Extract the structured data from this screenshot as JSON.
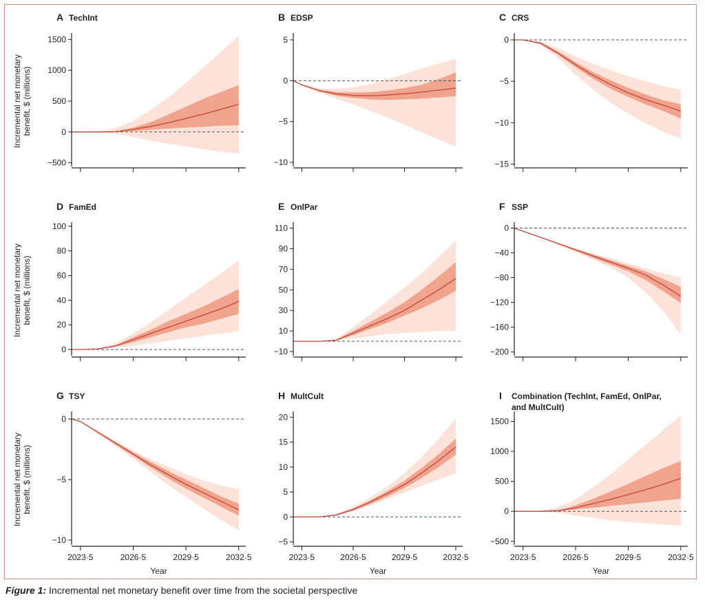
{
  "figure": {
    "caption_label": "Figure 1:",
    "caption_text": " Incremental net monetary benefit over time from the societal perspective"
  },
  "shared": {
    "xlabel": "Year",
    "ylabel": [
      "Incremental net monetary",
      "benefit, $ (millions)"
    ],
    "x_tick_labels": [
      "2023·5",
      "2026·5",
      "2029·5",
      "2032·5"
    ],
    "colors": {
      "line": "#c4453c",
      "inner_band": "#f0a48e",
      "outer_band": "#fce2d8",
      "zero_line": "#3c5a6a",
      "axis": "#231f20"
    }
  },
  "chart_data": [
    {
      "panel": "A",
      "title": "TechInt",
      "type": "line",
      "x": [
        2023.0,
        2023.5,
        2024.5,
        2025.5,
        2026.5,
        2027.5,
        2028.5,
        2029.5,
        2030.5,
        2031.5,
        2032.5
      ],
      "xlim": [
        2023.0,
        2032.9
      ],
      "ylim": [
        -560,
        1560
      ],
      "yticks": [
        -500,
        0,
        500,
        1000,
        1500
      ],
      "y_tick_labels": [
        "−500",
        "0",
        "500",
        "1000",
        "1500"
      ],
      "series": [
        {
          "role": "central",
          "values": [
            0,
            0,
            0,
            5,
            40,
            90,
            150,
            220,
            290,
            370,
            450
          ]
        },
        {
          "role": "inner_low",
          "values": [
            0,
            0,
            0,
            3,
            15,
            35,
            55,
            70,
            85,
            100,
            110
          ]
        },
        {
          "role": "inner_high",
          "values": [
            0,
            0,
            0,
            10,
            70,
            160,
            280,
            410,
            540,
            650,
            760
          ]
        },
        {
          "role": "outer_low",
          "values": [
            0,
            0,
            -5,
            -30,
            -80,
            -140,
            -190,
            -240,
            -280,
            -320,
            -350
          ]
        },
        {
          "role": "outer_high",
          "values": [
            0,
            0,
            10,
            60,
            180,
            360,
            560,
            800,
            1050,
            1300,
            1560
          ]
        }
      ]
    },
    {
      "panel": "B",
      "title": "EDSP",
      "type": "line",
      "x": [
        2023.0,
        2023.5,
        2024.5,
        2025.5,
        2026.5,
        2027.5,
        2028.5,
        2029.5,
        2030.5,
        2031.5,
        2032.5
      ],
      "xlim": [
        2023.0,
        2032.9
      ],
      "ylim": [
        -10.5,
        5.5
      ],
      "yticks": [
        -10,
        -5,
        0,
        5
      ],
      "y_tick_labels": [
        "−10",
        "−5",
        "0",
        "5"
      ],
      "series": [
        {
          "role": "central",
          "values": [
            0,
            -0.5,
            -1.2,
            -1.6,
            -1.8,
            -1.85,
            -1.75,
            -1.6,
            -1.4,
            -1.15,
            -0.9
          ]
        },
        {
          "role": "inner_low",
          "values": [
            0,
            -0.55,
            -1.3,
            -1.85,
            -2.1,
            -2.3,
            -2.35,
            -2.3,
            -2.2,
            -2.05,
            -1.9
          ]
        },
        {
          "role": "inner_high",
          "values": [
            0,
            -0.45,
            -1.1,
            -1.4,
            -1.45,
            -1.4,
            -1.2,
            -0.9,
            -0.5,
            0.2,
            1.0
          ]
        },
        {
          "role": "outer_low",
          "values": [
            0,
            -0.6,
            -1.45,
            -2.2,
            -2.9,
            -3.7,
            -4.5,
            -5.4,
            -6.3,
            -7.2,
            -8.1
          ]
        },
        {
          "role": "outer_high",
          "values": [
            0,
            -0.4,
            -0.95,
            -1.0,
            -0.8,
            -0.4,
            0.2,
            0.8,
            1.5,
            2.1,
            2.7
          ]
        }
      ]
    },
    {
      "panel": "C",
      "title": "CRS",
      "type": "line",
      "x": [
        2023.0,
        2023.5,
        2024.5,
        2025.5,
        2026.5,
        2027.5,
        2028.5,
        2029.5,
        2030.5,
        2031.5,
        2032.5
      ],
      "xlim": [
        2023.0,
        2032.9
      ],
      "ylim": [
        -15.3,
        0.5
      ],
      "yticks": [
        -15,
        -10,
        -5,
        0
      ],
      "y_tick_labels": [
        "−15",
        "−10",
        "−5",
        "0"
      ],
      "series": [
        {
          "role": "central",
          "values": [
            0,
            0,
            -0.4,
            -1.6,
            -3.0,
            -4.3,
            -5.4,
            -6.4,
            -7.2,
            -7.9,
            -8.6
          ]
        },
        {
          "role": "inner_low",
          "values": [
            0,
            0,
            -0.5,
            -1.8,
            -3.3,
            -4.7,
            -5.9,
            -6.9,
            -7.8,
            -8.6,
            -9.5
          ]
        },
        {
          "role": "inner_high",
          "values": [
            0,
            0,
            -0.3,
            -1.4,
            -2.7,
            -3.9,
            -4.9,
            -5.8,
            -6.6,
            -7.3,
            -7.8
          ]
        },
        {
          "role": "outer_low",
          "values": [
            0,
            0,
            -0.6,
            -2.2,
            -4.2,
            -6.0,
            -7.6,
            -8.9,
            -10.1,
            -11.1,
            -11.9
          ]
        },
        {
          "role": "outer_high",
          "values": [
            0,
            0,
            -0.2,
            -1.0,
            -2.0,
            -2.9,
            -3.7,
            -4.4,
            -5.0,
            -5.6,
            -6.0
          ]
        }
      ]
    },
    {
      "panel": "D",
      "title": "FamEd",
      "type": "line",
      "x": [
        2023.0,
        2023.5,
        2024.5,
        2025.5,
        2026.5,
        2027.5,
        2028.5,
        2029.5,
        2030.5,
        2031.5,
        2032.5
      ],
      "xlim": [
        2023.0,
        2032.9
      ],
      "ylim": [
        -5,
        101
      ],
      "yticks": [
        0,
        20,
        40,
        60,
        80,
        100
      ],
      "y_tick_labels": [
        "0",
        "20",
        "40",
        "60",
        "80",
        "100"
      ],
      "series": [
        {
          "role": "central",
          "values": [
            0,
            0,
            0.5,
            3,
            8,
            13,
            18,
            23,
            28,
            33,
            39
          ]
        },
        {
          "role": "inner_low",
          "values": [
            0,
            0,
            0.4,
            2.5,
            6,
            10,
            14,
            18,
            21,
            25,
            29
          ]
        },
        {
          "role": "inner_high",
          "values": [
            0,
            0,
            0.6,
            3.5,
            10,
            16,
            23,
            29,
            35,
            42,
            49
          ]
        },
        {
          "role": "outer_low",
          "values": [
            0,
            0,
            0.2,
            1.5,
            3,
            5,
            7,
            9,
            11,
            13,
            15
          ]
        },
        {
          "role": "outer_high",
          "values": [
            0,
            0,
            1,
            5,
            13,
            22,
            32,
            42,
            52,
            62,
            72
          ]
        }
      ]
    },
    {
      "panel": "E",
      "title": "OnlPar",
      "type": "line",
      "x": [
        2023.0,
        2023.5,
        2024.5,
        2025.5,
        2026.5,
        2027.5,
        2028.5,
        2029.5,
        2030.5,
        2031.5,
        2032.5
      ],
      "xlim": [
        2023.0,
        2032.9
      ],
      "ylim": [
        -14,
        113
      ],
      "yticks": [
        -10,
        10,
        30,
        50,
        70,
        90,
        110
      ],
      "y_tick_labels": [
        "−10",
        "10",
        "30",
        "50",
        "70",
        "90",
        "110"
      ],
      "series": [
        {
          "role": "central",
          "values": [
            0,
            0,
            0,
            1,
            8,
            15,
            22,
            30,
            40,
            50,
            61
          ]
        },
        {
          "role": "inner_low",
          "values": [
            0,
            0,
            0,
            0.8,
            6,
            12,
            18,
            25,
            32,
            40,
            49
          ]
        },
        {
          "role": "inner_high",
          "values": [
            0,
            0,
            0,
            1.5,
            10,
            19,
            28,
            38,
            50,
            63,
            77
          ]
        },
        {
          "role": "outer_low",
          "values": [
            0,
            0,
            0,
            0.5,
            3,
            5,
            7,
            8,
            9,
            10,
            10
          ]
        },
        {
          "role": "outer_high",
          "values": [
            0,
            0,
            0,
            2,
            14,
            26,
            39,
            52,
            66,
            82,
            98
          ]
        }
      ]
    },
    {
      "panel": "F",
      "title": "SSP",
      "type": "line",
      "x": [
        2023.0,
        2023.5,
        2024.5,
        2025.5,
        2026.5,
        2027.5,
        2028.5,
        2029.5,
        2030.5,
        2031.5,
        2032.5
      ],
      "xlim": [
        2023.0,
        2032.9
      ],
      "ylim": [
        -206,
        5
      ],
      "yticks": [
        -200,
        -160,
        -120,
        -80,
        -40,
        0
      ],
      "y_tick_labels": [
        "−200",
        "−160",
        "−120",
        "−80",
        "−40",
        "0"
      ],
      "series": [
        {
          "role": "central",
          "values": [
            0,
            -5,
            -15,
            -25,
            -35,
            -45,
            -55,
            -65,
            -76,
            -92,
            -110
          ]
        },
        {
          "role": "inner_low",
          "values": [
            0,
            -5,
            -15,
            -26,
            -37,
            -48,
            -59,
            -70,
            -84,
            -102,
            -121
          ]
        },
        {
          "role": "inner_high",
          "values": [
            0,
            -5,
            -15,
            -25,
            -34,
            -43,
            -52,
            -61,
            -70,
            -82,
            -95
          ]
        },
        {
          "role": "outer_low",
          "values": [
            0,
            -5,
            -16,
            -27,
            -39,
            -51,
            -64,
            -80,
            -104,
            -134,
            -172
          ]
        },
        {
          "role": "outer_high",
          "values": [
            0,
            -5,
            -14,
            -24,
            -33,
            -41,
            -49,
            -57,
            -65,
            -73,
            -80
          ]
        }
      ]
    },
    {
      "panel": "G",
      "title": "TSY",
      "type": "line",
      "x": [
        2023.0,
        2023.5,
        2024.5,
        2025.5,
        2026.5,
        2027.5,
        2028.5,
        2029.5,
        2030.5,
        2031.5,
        2032.5
      ],
      "xlim": [
        2023.0,
        2032.9
      ],
      "ylim": [
        -10.4,
        0.4
      ],
      "yticks": [
        -10,
        -5,
        0
      ],
      "y_tick_labels": [
        "−10",
        "−5",
        "0"
      ],
      "series": [
        {
          "role": "central",
          "values": [
            0,
            -0.2,
            -1.1,
            -2.0,
            -2.9,
            -3.8,
            -4.6,
            -5.4,
            -6.1,
            -6.8,
            -7.5
          ]
        },
        {
          "role": "inner_low",
          "values": [
            0,
            -0.2,
            -1.15,
            -2.1,
            -3.05,
            -4.0,
            -4.9,
            -5.75,
            -6.5,
            -7.25,
            -8.0
          ]
        },
        {
          "role": "inner_high",
          "values": [
            0,
            -0.2,
            -1.05,
            -1.9,
            -2.75,
            -3.55,
            -4.3,
            -5.0,
            -5.7,
            -6.4,
            -7.0
          ]
        },
        {
          "role": "outer_low",
          "values": [
            0,
            -0.25,
            -1.25,
            -2.25,
            -3.3,
            -4.4,
            -5.45,
            -6.45,
            -7.4,
            -8.35,
            -9.2
          ]
        },
        {
          "role": "outer_high",
          "values": [
            0,
            -0.15,
            -1.0,
            -1.8,
            -2.6,
            -3.3,
            -3.95,
            -4.55,
            -5.1,
            -5.5,
            -5.8
          ]
        }
      ]
    },
    {
      "panel": "H",
      "title": "MultCult",
      "type": "line",
      "x": [
        2023.0,
        2023.5,
        2024.5,
        2025.5,
        2026.5,
        2027.5,
        2028.5,
        2029.5,
        2030.5,
        2031.5,
        2032.5
      ],
      "xlim": [
        2023.0,
        2032.9
      ],
      "ylim": [
        -5.6,
        20.6
      ],
      "yticks": [
        -5,
        0,
        5,
        10,
        15,
        20
      ],
      "y_tick_labels": [
        "−5",
        "0",
        "5",
        "10",
        "15",
        "20"
      ],
      "series": [
        {
          "role": "central",
          "values": [
            0,
            0,
            0,
            0.4,
            1.5,
            3,
            4.7,
            6.5,
            8.8,
            11.3,
            14
          ]
        },
        {
          "role": "inner_low",
          "values": [
            0,
            0,
            0,
            0.3,
            1.3,
            2.6,
            4.1,
            5.8,
            7.8,
            10,
            12.5
          ]
        },
        {
          "role": "inner_high",
          "values": [
            0,
            0,
            0,
            0.5,
            1.7,
            3.3,
            5.2,
            7.3,
            9.8,
            12.6,
            15.7
          ]
        },
        {
          "role": "outer_low",
          "values": [
            0,
            0,
            0,
            0.2,
            1.1,
            2.3,
            3.6,
            4.9,
            6.2,
            7.5,
            8.8
          ]
        },
        {
          "role": "outer_high",
          "values": [
            0,
            0,
            0,
            0.6,
            2.0,
            3.9,
            6.1,
            8.8,
            12,
            15.7,
            19.7
          ]
        }
      ]
    },
    {
      "panel": "I",
      "title": "Combination (TechInt, FamEd, OnlPar,",
      "title_line2": "and MultCult)",
      "type": "line",
      "x": [
        2023.0,
        2023.5,
        2024.5,
        2025.5,
        2026.5,
        2027.5,
        2028.5,
        2029.5,
        2030.5,
        2031.5,
        2032.5
      ],
      "xlim": [
        2023.0,
        2032.9
      ],
      "ylim": [
        -560,
        1620
      ],
      "yticks": [
        -500,
        0,
        500,
        1000,
        1500
      ],
      "y_tick_labels": [
        "−500",
        "0",
        "500",
        "1000",
        "1500"
      ],
      "series": [
        {
          "role": "central",
          "values": [
            0,
            0,
            0,
            10,
            60,
            130,
            200,
            280,
            360,
            450,
            550
          ]
        },
        {
          "role": "inner_low",
          "values": [
            0,
            0,
            0,
            5,
            30,
            60,
            90,
            120,
            150,
            180,
            210
          ]
        },
        {
          "role": "inner_high",
          "values": [
            0,
            0,
            0,
            15,
            100,
            210,
            330,
            460,
            590,
            720,
            840
          ]
        },
        {
          "role": "outer_low",
          "values": [
            0,
            0,
            -5,
            -30,
            -70,
            -110,
            -150,
            -180,
            -200,
            -220,
            -240
          ]
        },
        {
          "role": "outer_high",
          "values": [
            0,
            0,
            10,
            70,
            200,
            400,
            620,
            870,
            1110,
            1360,
            1600
          ]
        }
      ]
    }
  ]
}
